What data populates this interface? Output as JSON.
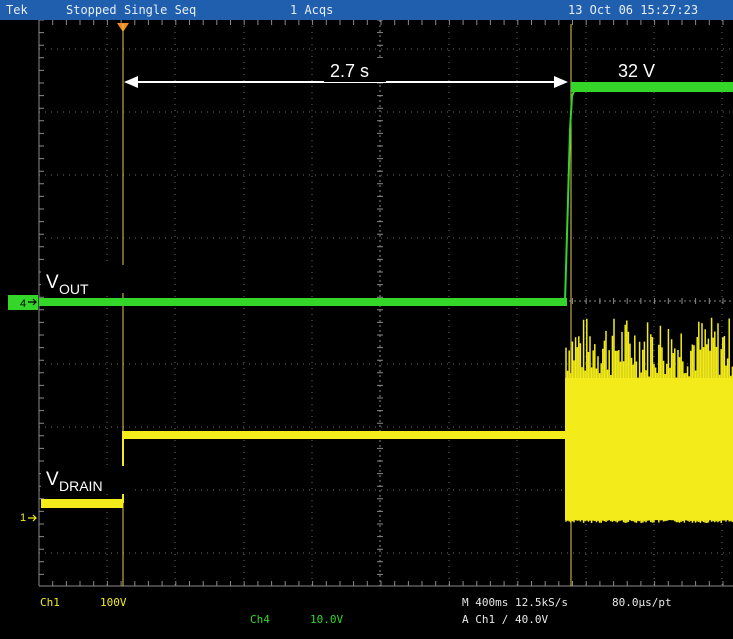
{
  "status_bar": {
    "brand": "Tek",
    "run_state": "Stopped",
    "acq_mode": "Single Seq",
    "acq_count": "1 Acqs",
    "timestamp": "13 Oct 06 15:27:23"
  },
  "annotations": {
    "interval": "2.7 s",
    "voltage": "32 V",
    "vout_main": "V",
    "vout_sub": "OUT",
    "vdrain_main": "V",
    "vdrain_sub": "DRAIN"
  },
  "markers": {
    "ch4": "4",
    "ch1": "1"
  },
  "footer": {
    "ch1_label": "Ch1",
    "ch1_scale": "100V",
    "ch4_label": "Ch4",
    "ch4_scale": "10.0V",
    "timebase": "M 400ms 12.5kS/s",
    "sample_interval": "80.0µs/pt",
    "trigger": "A  Ch1  ∕  40.0V"
  },
  "colors": {
    "ch1": "#f4ec1a",
    "ch4": "#35d62a",
    "grid": "#6a6a6a",
    "status_bg": "#1f5fae",
    "trigger_marker": "#f08a24"
  }
}
